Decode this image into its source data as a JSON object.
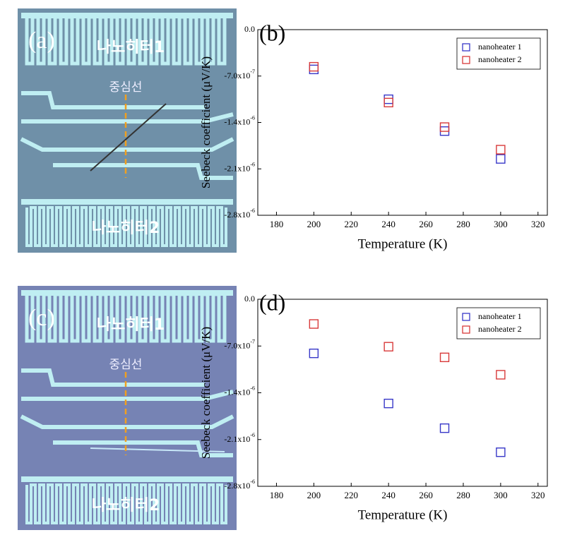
{
  "images": [
    {
      "label": "(a)",
      "heater_top": "나노히터1",
      "center": "중심선",
      "heater_bottom": "나노히터2"
    },
    {
      "label": "(c)",
      "heater_top": "나노히터1",
      "center": "중심선",
      "heater_bottom": "나노히터2"
    }
  ],
  "chart_data": [
    {
      "type": "scatter",
      "panel_label": "(b)",
      "x_label": "Temperature (K)",
      "y_label": "Seebeck coefficient (μV/K)",
      "x": [
        200,
        240,
        270,
        300
      ],
      "series": [
        {
          "name": "nanoheater 1",
          "color": "#3838c8",
          "values": [
            -6e-07,
            -1.05e-06,
            -1.53e-06,
            -1.95e-06
          ]
        },
        {
          "name": "nanoheater 2",
          "color": "#d83a3a",
          "values": [
            -5.6e-07,
            -1.1e-06,
            -1.47e-06,
            -1.81e-06
          ]
        }
      ],
      "xlim": [
        170,
        325
      ],
      "xticks": [
        180,
        200,
        220,
        240,
        260,
        280,
        300,
        320
      ],
      "ylim": [
        -2.8e-06,
        0
      ],
      "yticks": [
        {
          "value": 0,
          "label": "0.0"
        },
        {
          "value": -7e-07,
          "label": "-7.0x10",
          "exponent": "-7"
        },
        {
          "value": -1.4e-06,
          "label": "-1.4x10",
          "exponent": "-6"
        },
        {
          "value": -2.1e-06,
          "label": "-2.1x10",
          "exponent": "-6"
        },
        {
          "value": -2.8e-06,
          "label": "-2.8x10",
          "exponent": "-6"
        }
      ],
      "legend": "upper right"
    },
    {
      "type": "scatter",
      "panel_label": "(d)",
      "x_label": "Temperature (K)",
      "y_label": "Seebeck coefficient (μV/K)",
      "x": [
        200,
        240,
        270,
        300
      ],
      "series": [
        {
          "name": "nanoheater 1",
          "color": "#3838c8",
          "values": [
            -8.1e-07,
            -1.56e-06,
            -1.93e-06,
            -2.29e-06
          ]
        },
        {
          "name": "nanoheater 2",
          "color": "#d83a3a",
          "values": [
            -3.7e-07,
            -7.1e-07,
            -8.7e-07,
            -1.13e-06
          ]
        }
      ],
      "xlim": [
        170,
        325
      ],
      "xticks": [
        180,
        200,
        220,
        240,
        260,
        280,
        300,
        320
      ],
      "ylim": [
        -2.8e-06,
        0
      ],
      "yticks": [
        {
          "value": 0,
          "label": "0.0"
        },
        {
          "value": -7e-07,
          "label": "-7.0x10",
          "exponent": "-7"
        },
        {
          "value": -1.4e-06,
          "label": "-1.4x10",
          "exponent": "-6"
        },
        {
          "value": -2.1e-06,
          "label": "-2.1x10",
          "exponent": "-6"
        },
        {
          "value": -2.8e-06,
          "label": "-2.8x10",
          "exponent": "-6"
        }
      ],
      "legend": "upper right"
    }
  ]
}
